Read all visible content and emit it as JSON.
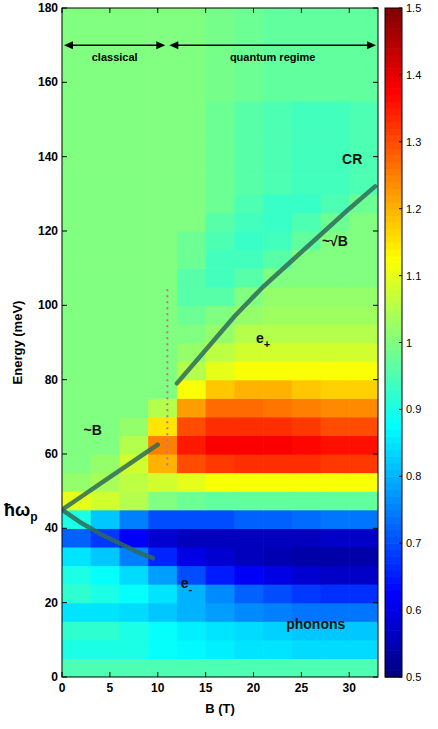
{
  "chart_data": {
    "type": "heatmap",
    "x_label": "B (T)",
    "y_label": "Energy (meV)",
    "xlim": [
      0,
      33
    ],
    "xticks": [
      0,
      5,
      10,
      15,
      20,
      25,
      30
    ],
    "ylim": [
      0,
      180
    ],
    "yticks": [
      0,
      20,
      40,
      60,
      80,
      100,
      120,
      140,
      160,
      180
    ],
    "x_bins": [
      0,
      3,
      6,
      9,
      12,
      15,
      18,
      21,
      24,
      27,
      30,
      33
    ],
    "y_bins": [
      0,
      5,
      10,
      15,
      20,
      25,
      30,
      35,
      40,
      45,
      50,
      55,
      60,
      65,
      70,
      75,
      80,
      85,
      90,
      95,
      100,
      105,
      110,
      115,
      120,
      125,
      130,
      135,
      140,
      145,
      150,
      155,
      160,
      165,
      170,
      175,
      180
    ],
    "cells": [
      [
        0.95,
        0.95,
        0.95,
        0.95,
        0.95,
        0.95,
        0.95,
        0.95,
        0.95,
        0.95,
        0.95
      ],
      [
        0.9,
        0.9,
        0.9,
        0.88,
        0.87,
        0.86,
        0.85,
        0.85,
        0.84,
        0.84,
        0.84
      ],
      [
        0.92,
        0.92,
        0.9,
        0.88,
        0.86,
        0.85,
        0.84,
        0.83,
        0.82,
        0.82,
        0.82
      ],
      [
        0.85,
        0.85,
        0.84,
        0.82,
        0.8,
        0.78,
        0.76,
        0.75,
        0.74,
        0.74,
        0.74
      ],
      [
        0.92,
        0.9,
        0.88,
        0.85,
        0.8,
        0.76,
        0.72,
        0.7,
        0.68,
        0.67,
        0.67
      ],
      [
        0.9,
        0.88,
        0.84,
        0.78,
        0.7,
        0.65,
        0.62,
        0.6,
        0.58,
        0.57,
        0.57
      ],
      [
        0.85,
        0.82,
        0.75,
        0.66,
        0.6,
        0.58,
        0.56,
        0.55,
        0.54,
        0.54,
        0.54
      ],
      [
        0.72,
        0.68,
        0.62,
        0.58,
        0.56,
        0.56,
        0.56,
        0.56,
        0.56,
        0.57,
        0.57
      ],
      [
        0.9,
        0.82,
        0.75,
        0.7,
        0.7,
        0.7,
        0.72,
        0.72,
        0.73,
        0.74,
        0.74
      ],
      [
        1.1,
        1.08,
        1.05,
        1.0,
        0.98,
        0.97,
        0.97,
        0.97,
        0.97,
        0.97,
        0.97
      ],
      [
        1.02,
        1.04,
        1.06,
        1.08,
        1.1,
        1.12,
        1.12,
        1.12,
        1.12,
        1.12,
        1.12
      ],
      [
        1.0,
        1.02,
        1.08,
        1.2,
        1.3,
        1.32,
        1.33,
        1.33,
        1.33,
        1.32,
        1.32
      ],
      [
        1.0,
        1.0,
        1.05,
        1.25,
        1.35,
        1.38,
        1.38,
        1.38,
        1.37,
        1.36,
        1.36
      ],
      [
        1.0,
        1.0,
        1.02,
        1.15,
        1.3,
        1.33,
        1.33,
        1.33,
        1.32,
        1.3,
        1.3
      ],
      [
        1.0,
        1.0,
        1.0,
        1.05,
        1.22,
        1.27,
        1.27,
        1.26,
        1.25,
        1.24,
        1.24
      ],
      [
        1.0,
        1.0,
        1.0,
        1.0,
        1.12,
        1.18,
        1.2,
        1.2,
        1.18,
        1.17,
        1.17
      ],
      [
        1.0,
        1.0,
        1.0,
        1.0,
        1.05,
        1.1,
        1.12,
        1.12,
        1.12,
        1.12,
        1.12
      ],
      [
        1.0,
        1.0,
        1.0,
        1.0,
        1.02,
        1.06,
        1.08,
        1.08,
        1.08,
        1.08,
        1.08
      ],
      [
        1.0,
        1.0,
        1.0,
        1.0,
        1.0,
        1.02,
        1.05,
        1.05,
        1.05,
        1.05,
        1.05
      ],
      [
        1.0,
        1.0,
        1.0,
        1.0,
        0.98,
        1.0,
        1.02,
        1.03,
        1.03,
        1.03,
        1.03
      ],
      [
        1.0,
        1.0,
        1.0,
        1.0,
        0.96,
        0.96,
        1.0,
        1.02,
        1.02,
        1.02,
        1.02
      ],
      [
        1.0,
        1.0,
        1.0,
        1.0,
        0.96,
        0.94,
        0.96,
        1.0,
        1.0,
        1.0,
        1.0
      ],
      [
        1.0,
        1.0,
        1.0,
        1.0,
        0.98,
        0.94,
        0.94,
        0.96,
        1.0,
        1.0,
        1.0
      ],
      [
        1.0,
        1.0,
        1.0,
        1.0,
        0.98,
        0.95,
        0.93,
        0.94,
        0.97,
        1.0,
        1.0
      ],
      [
        1.0,
        1.0,
        1.0,
        1.0,
        1.0,
        0.96,
        0.94,
        0.93,
        0.95,
        0.98,
        1.0
      ],
      [
        1.0,
        1.0,
        1.0,
        1.0,
        1.0,
        0.98,
        0.95,
        0.93,
        0.93,
        0.95,
        0.98
      ],
      [
        1.0,
        1.0,
        1.0,
        1.0,
        1.0,
        0.98,
        0.96,
        0.95,
        0.94,
        0.94,
        0.95
      ],
      [
        1.0,
        1.0,
        1.0,
        1.0,
        1.0,
        0.98,
        0.96,
        0.95,
        0.94,
        0.94,
        0.95
      ],
      [
        1.0,
        1.0,
        1.0,
        1.0,
        1.0,
        0.98,
        0.96,
        0.95,
        0.94,
        0.94,
        0.95
      ],
      [
        1.0,
        1.0,
        1.0,
        1.0,
        1.0,
        0.98,
        0.96,
        0.95,
        0.94,
        0.94,
        0.95
      ],
      [
        1.0,
        1.0,
        1.0,
        1.0,
        1.0,
        0.98,
        0.96,
        0.95,
        0.94,
        0.94,
        0.95
      ],
      [
        1.0,
        1.0,
        1.0,
        1.0,
        1.0,
        0.99,
        0.98,
        0.97,
        0.97,
        0.97,
        0.97
      ],
      [
        1.0,
        1.0,
        1.0,
        1.0,
        1.0,
        0.99,
        0.98,
        0.97,
        0.97,
        0.97,
        0.97
      ],
      [
        1.0,
        1.0,
        1.0,
        1.0,
        1.0,
        0.99,
        0.98,
        0.97,
        0.97,
        0.97,
        0.97
      ],
      [
        1.0,
        1.0,
        1.0,
        1.0,
        1.0,
        0.99,
        0.98,
        0.97,
        0.97,
        0.97,
        0.97
      ],
      [
        1.0,
        1.0,
        1.0,
        1.0,
        1.0,
        0.99,
        0.98,
        0.97,
        0.97,
        0.97,
        0.97
      ]
    ],
    "colorbar": {
      "range": [
        0.5,
        1.5
      ],
      "ticks": [
        0.5,
        0.6,
        0.7,
        0.8,
        0.9,
        1,
        1.1,
        1.2,
        1.3,
        1.4,
        1.5
      ]
    },
    "curves": [
      {
        "x": [
          0,
          2,
          4,
          6,
          8,
          10
        ],
        "y": [
          45,
          48.5,
          52,
          55.5,
          59,
          62.5
        ]
      },
      {
        "x": [
          0,
          2,
          4,
          6,
          8,
          9.5
        ],
        "y": [
          45,
          41.5,
          38.5,
          36,
          33.5,
          32
        ]
      },
      {
        "x": [
          12,
          15,
          18,
          21,
          24,
          27,
          30,
          32.7
        ],
        "y": [
          79,
          88,
          97,
          105,
          112,
          119,
          126,
          132
        ]
      }
    ],
    "divider": {
      "x": 11,
      "y": [
        57,
        105
      ]
    },
    "regimes": [
      {
        "text": "classical",
        "x": [
          0,
          11
        ],
        "y": 170
      },
      {
        "text": "quantum regime",
        "x": [
          11,
          33
        ],
        "y": 170
      }
    ],
    "annotations": [
      {
        "text": "CR",
        "subscript": "",
        "x": 30.3,
        "y": 138
      },
      {
        "text": "~√B",
        "subscript": "",
        "x": 28.5,
        "y": 116
      },
      {
        "text": "~B",
        "subscript": "",
        "x": 3.2,
        "y": 65
      },
      {
        "text": "e",
        "subscript": "+",
        "x": 21,
        "y": 90
      },
      {
        "text": "e",
        "subscript": "-",
        "x": 13,
        "y": 24
      },
      {
        "text": "phonons",
        "subscript": "",
        "x": 26.5,
        "y": 13
      }
    ],
    "y_annotation": {
      "text": "ħω",
      "subscript": "p",
      "y": 45
    }
  }
}
